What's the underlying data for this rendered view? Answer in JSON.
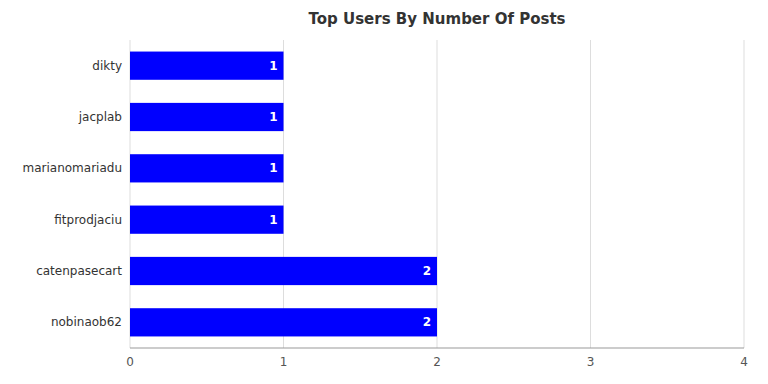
{
  "chart_data": {
    "type": "bar",
    "orientation": "horizontal",
    "title": "Top Users By Number Of Posts",
    "categories": [
      "nobinaob62",
      "catenpasecart",
      "fitprodjaciu",
      "marianomariadu",
      "jacplab",
      "dikty"
    ],
    "values": [
      2,
      2,
      1,
      1,
      1,
      1
    ],
    "color": "#0000ff",
    "xlim": [
      0,
      4
    ],
    "xticks": [
      0,
      1,
      2,
      3,
      4
    ],
    "grid": true,
    "data_labels": true
  }
}
